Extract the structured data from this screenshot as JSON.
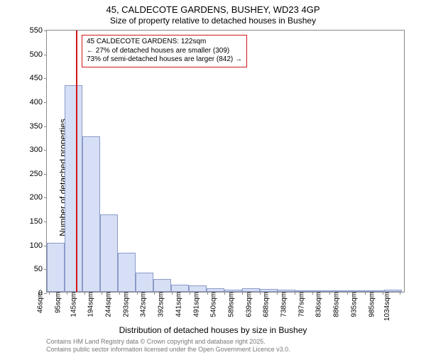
{
  "chart": {
    "type": "histogram",
    "title_line1": "45, CALDECOTE GARDENS, BUSHEY, WD23 4GP",
    "title_line2": "Size of property relative to detached houses in Bushey",
    "y_label": "Number of detached properties",
    "x_label": "Distribution of detached houses by size in Bushey",
    "ylim": [
      0,
      550
    ],
    "y_ticks": [
      0,
      50,
      100,
      150,
      200,
      250,
      300,
      350,
      400,
      450,
      500,
      550
    ],
    "x_range": [
      40,
      1050
    ],
    "x_tick_labels": [
      "46sqm",
      "95sqm",
      "145sqm",
      "194sqm",
      "244sqm",
      "293sqm",
      "342sqm",
      "392sqm",
      "441sqm",
      "491sqm",
      "540sqm",
      "589sqm",
      "639sqm",
      "688sqm",
      "738sqm",
      "787sqm",
      "836sqm",
      "886sqm",
      "935sqm",
      "985sqm",
      "1034sqm"
    ],
    "x_tick_positions": [
      46,
      95,
      145,
      194,
      244,
      293,
      342,
      392,
      441,
      491,
      540,
      589,
      639,
      688,
      738,
      787,
      836,
      886,
      935,
      985,
      1034
    ],
    "bars": [
      {
        "x_start": 40,
        "x_end": 90,
        "value": 103
      },
      {
        "x_start": 90,
        "x_end": 140,
        "value": 432
      },
      {
        "x_start": 140,
        "x_end": 190,
        "value": 325
      },
      {
        "x_start": 190,
        "x_end": 240,
        "value": 162
      },
      {
        "x_start": 240,
        "x_end": 290,
        "value": 82
      },
      {
        "x_start": 290,
        "x_end": 340,
        "value": 40
      },
      {
        "x_start": 340,
        "x_end": 390,
        "value": 27
      },
      {
        "x_start": 390,
        "x_end": 440,
        "value": 15
      },
      {
        "x_start": 440,
        "x_end": 490,
        "value": 13
      },
      {
        "x_start": 490,
        "x_end": 540,
        "value": 8
      },
      {
        "x_start": 540,
        "x_end": 590,
        "value": 4
      },
      {
        "x_start": 590,
        "x_end": 640,
        "value": 7
      },
      {
        "x_start": 640,
        "x_end": 690,
        "value": 6
      },
      {
        "x_start": 690,
        "x_end": 740,
        "value": 4
      },
      {
        "x_start": 740,
        "x_end": 790,
        "value": 3
      },
      {
        "x_start": 790,
        "x_end": 840,
        "value": 2
      },
      {
        "x_start": 840,
        "x_end": 890,
        "value": 1
      },
      {
        "x_start": 890,
        "x_end": 940,
        "value": 1
      },
      {
        "x_start": 940,
        "x_end": 990,
        "value": 1
      },
      {
        "x_start": 990,
        "x_end": 1040,
        "value": 5
      }
    ],
    "bar_fill": "#d6dff5",
    "bar_stroke": "#8a9bc9",
    "background_color": "#ffffff",
    "axis_color": "#888888",
    "marker": {
      "x": 122,
      "color": "#d01616"
    },
    "annotation": {
      "line1": "45 CALDECOTE GARDENS: 122sqm",
      "line2": "← 27% of detached houses are smaller (309)",
      "line3": "73% of semi-detached houses are larger (842) →",
      "border_color": "#d01616"
    },
    "footer_line1": "Contains HM Land Registry data © Crown copyright and database right 2025.",
    "footer_line2": "Contains public sector information licensed under the Open Government Licence v3.0."
  }
}
